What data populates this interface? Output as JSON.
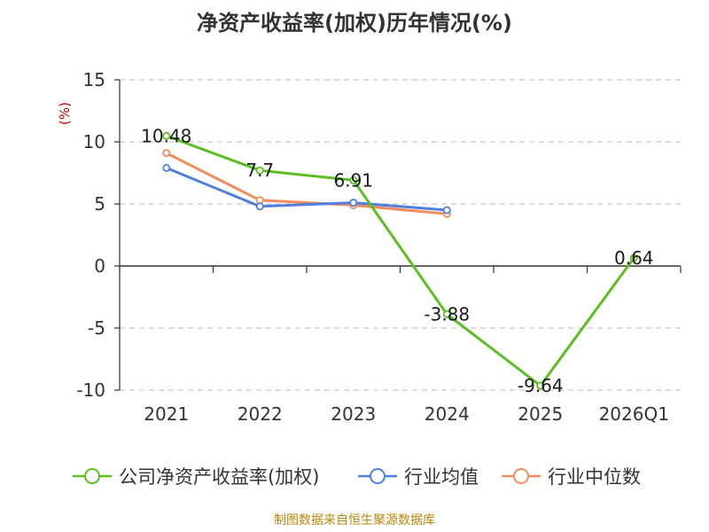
{
  "chart_data": {
    "type": "line",
    "title": "净资产收益率(加权)历年情况(%)",
    "ylabel": "(%)",
    "categories": [
      "2021",
      "2022",
      "2023",
      "2024",
      "2025",
      "2026Q1"
    ],
    "ylim": [
      -10,
      15
    ],
    "yticks": [
      15,
      10,
      5,
      0,
      -5,
      -10
    ],
    "grid": true,
    "legend_position": "bottom",
    "series": [
      {
        "name": "公司净资产收益率(加权)",
        "color": "#5bbf21",
        "values": [
          10.48,
          7.7,
          6.91,
          -3.88,
          -9.64,
          0.64
        ],
        "labels": [
          "10.48",
          "7.7",
          "6.91",
          "-3.88",
          "-9.64",
          "0.64"
        ]
      },
      {
        "name": "行业均值",
        "color": "#4e7fde",
        "values": [
          7.9,
          4.8,
          5.1,
          4.5,
          null,
          null
        ]
      },
      {
        "name": "行业中位数",
        "color": "#f28c5c",
        "values": [
          9.1,
          5.3,
          4.9,
          4.2,
          null,
          null
        ]
      }
    ]
  },
  "footer": {
    "source": "制图数据来自恒生聚源数据库"
  }
}
